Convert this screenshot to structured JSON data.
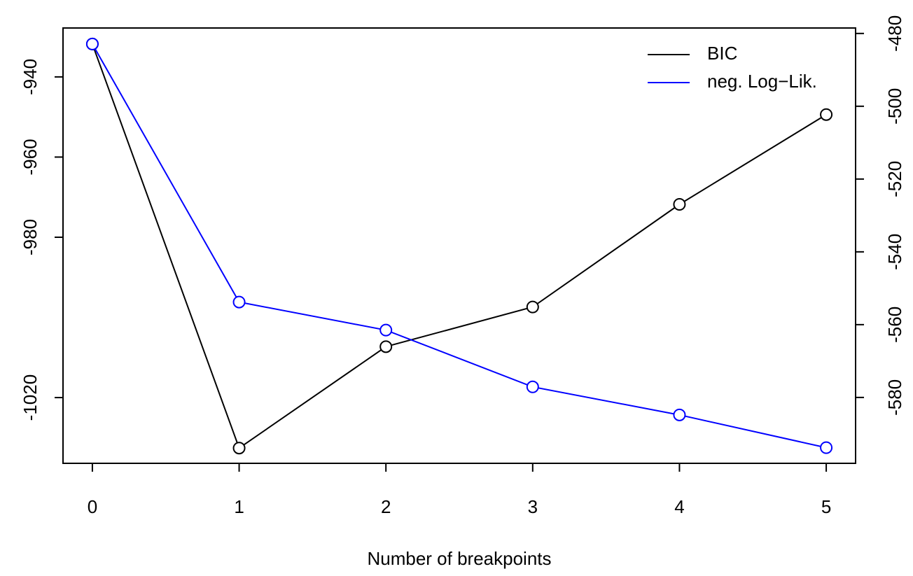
{
  "chart_data": {
    "type": "line",
    "x_label": "Number of breakpoints",
    "x": [
      0,
      1,
      2,
      3,
      4,
      5
    ],
    "xlim": [
      -0.2,
      5.2
    ],
    "xticks": [
      0,
      1,
      2,
      3,
      4,
      5
    ],
    "ylim": [
      -1036.4,
      -927.8
    ],
    "yticks": [
      -940,
      -960,
      -980,
      -1020
    ],
    "y2lim": [
      -598.1,
      -478.5
    ],
    "y2ticks": [
      -480,
      -500,
      -520,
      -540,
      -560,
      -580
    ],
    "legend": "top-right",
    "series": [
      {
        "name": "BIC",
        "color": "#000000",
        "values": [
          -931.8,
          -1032.6,
          -1007.3,
          -997.4,
          -971.8,
          -949.4
        ]
      },
      {
        "name": "neg. Log−Lik.",
        "color": "#0000ff",
        "axis": "y2",
        "values": [
          -482.9,
          -553.8,
          -561.5,
          -577.1,
          -584.8,
          -593.8
        ]
      }
    ]
  }
}
